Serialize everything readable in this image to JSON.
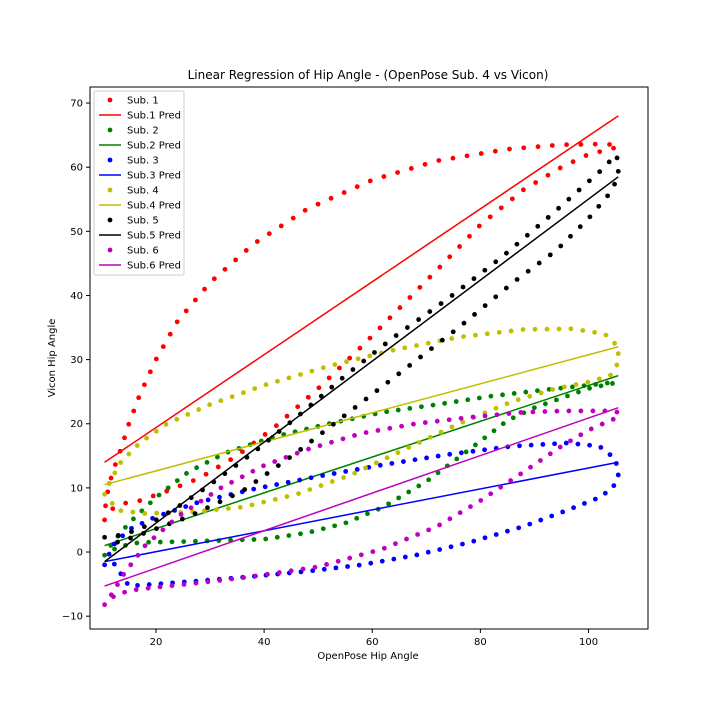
{
  "chart_data": {
    "type": "scatter",
    "title": "Linear Regression of Hip Angle - (OpenPose Sub. 4 vs Vicon)",
    "xlabel": "OpenPose Hip Angle",
    "ylabel": "Vicon Hip Angle",
    "xlim": [
      7.8,
      111.0
    ],
    "ylim": [
      -12.0,
      72.5
    ],
    "xticks": [
      20,
      40,
      60,
      80,
      100
    ],
    "yticks": [
      -10,
      0,
      10,
      20,
      30,
      40,
      50,
      60,
      70
    ],
    "grid": false,
    "legend_position": "top-left",
    "legend": [
      "Sub. 1",
      "Sub.1 Pred",
      "Sub. 2",
      "Sub.2 Pred",
      "Sub. 3",
      "Sub.3 Pred",
      "Sub. 4",
      "Sub.4 Pred",
      "Sub. 5",
      "Sub.5 Pred",
      "Sub. 6",
      "Sub.6 Pred"
    ],
    "series": [
      {
        "name": "Sub. 1",
        "color": "#ff0000",
        "n_points": 95,
        "loop": [
          {
            "x": 10.5,
            "y": 5.0
          },
          {
            "x": 10.7,
            "y": 7.5
          },
          {
            "x": 11.2,
            "y": 10.0
          },
          {
            "x": 12.0,
            "y": 12.5
          },
          {
            "x": 13.5,
            "y": 16.0
          },
          {
            "x": 15.0,
            "y": 20.0
          },
          {
            "x": 17.0,
            "y": 24.5
          },
          {
            "x": 20.0,
            "y": 30.0
          },
          {
            "x": 24.0,
            "y": 36.0
          },
          {
            "x": 30.0,
            "y": 42.0
          },
          {
            "x": 38.0,
            "y": 48.0
          },
          {
            "x": 48.0,
            "y": 53.5
          },
          {
            "x": 60.0,
            "y": 58.0
          },
          {
            "x": 72.0,
            "y": 61.0
          },
          {
            "x": 85.0,
            "y": 62.8
          },
          {
            "x": 95.0,
            "y": 63.5
          },
          {
            "x": 102.0,
            "y": 63.6
          },
          {
            "x": 105.0,
            "y": 63.5
          },
          {
            "x": 105.5,
            "y": 63.2
          },
          {
            "x": 104.0,
            "y": 62.8
          },
          {
            "x": 100.0,
            "y": 62.0
          },
          {
            "x": 95.0,
            "y": 60.0
          },
          {
            "x": 88.0,
            "y": 56.5
          },
          {
            "x": 80.0,
            "y": 51.0
          },
          {
            "x": 72.0,
            "y": 44.0
          },
          {
            "x": 65.0,
            "y": 38.0
          },
          {
            "x": 58.0,
            "y": 32.0
          },
          {
            "x": 50.0,
            "y": 25.5
          },
          {
            "x": 42.0,
            "y": 19.5
          },
          {
            "x": 35.0,
            "y": 15.0
          },
          {
            "x": 28.0,
            "y": 11.5
          },
          {
            "x": 22.0,
            "y": 9.5
          },
          {
            "x": 17.0,
            "y": 8.0
          },
          {
            "x": 13.5,
            "y": 7.5
          },
          {
            "x": 11.5,
            "y": 6.5
          },
          {
            "x": 10.5,
            "y": 5.0
          }
        ],
        "regression": {
          "x": [
            10.5,
            105.5
          ],
          "y": [
            14.0,
            68.0
          ]
        }
      },
      {
        "name": "Sub. 2",
        "color": "#008000",
        "n_points": 95,
        "loop": [
          {
            "x": 10.5,
            "y": -0.5
          },
          {
            "x": 12.0,
            "y": 1.5
          },
          {
            "x": 15.0,
            "y": 4.5
          },
          {
            "x": 20.0,
            "y": 8.5
          },
          {
            "x": 26.0,
            "y": 12.5
          },
          {
            "x": 33.0,
            "y": 15.5
          },
          {
            "x": 42.0,
            "y": 18.0
          },
          {
            "x": 52.0,
            "y": 20.0
          },
          {
            "x": 62.0,
            "y": 21.8
          },
          {
            "x": 72.0,
            "y": 23.0
          },
          {
            "x": 82.0,
            "y": 24.3
          },
          {
            "x": 92.0,
            "y": 25.3
          },
          {
            "x": 100.0,
            "y": 26.0
          },
          {
            "x": 105.0,
            "y": 26.5
          },
          {
            "x": 104.5,
            "y": 26.3
          },
          {
            "x": 100.0,
            "y": 25.5
          },
          {
            "x": 95.0,
            "y": 24.0
          },
          {
            "x": 90.0,
            "y": 22.5
          },
          {
            "x": 85.0,
            "y": 20.5
          },
          {
            "x": 78.0,
            "y": 16.0
          },
          {
            "x": 70.0,
            "y": 11.0
          },
          {
            "x": 62.0,
            "y": 7.0
          },
          {
            "x": 55.0,
            "y": 4.5
          },
          {
            "x": 48.0,
            "y": 3.0
          },
          {
            "x": 40.0,
            "y": 2.0
          },
          {
            "x": 32.0,
            "y": 1.8
          },
          {
            "x": 24.0,
            "y": 1.6
          },
          {
            "x": 17.0,
            "y": 1.5
          },
          {
            "x": 13.0,
            "y": 0.8
          },
          {
            "x": 10.5,
            "y": -0.5
          }
        ],
        "regression": {
          "x": [
            10.5,
            105.5
          ],
          "y": [
            1.0,
            27.5
          ]
        }
      },
      {
        "name": "Sub. 3",
        "color": "#0000ff",
        "n_points": 95,
        "loop": [
          {
            "x": 10.5,
            "y": -2.0
          },
          {
            "x": 12.0,
            "y": 1.0
          },
          {
            "x": 15.0,
            "y": 3.5
          },
          {
            "x": 20.0,
            "y": 5.5
          },
          {
            "x": 28.0,
            "y": 7.8
          },
          {
            "x": 38.0,
            "y": 9.8
          },
          {
            "x": 50.0,
            "y": 11.8
          },
          {
            "x": 62.0,
            "y": 13.6
          },
          {
            "x": 74.0,
            "y": 15.2
          },
          {
            "x": 86.0,
            "y": 16.5
          },
          {
            "x": 96.0,
            "y": 17.0
          },
          {
            "x": 102.0,
            "y": 16.5
          },
          {
            "x": 105.0,
            "y": 14.5
          },
          {
            "x": 105.5,
            "y": 12.0
          },
          {
            "x": 104.5,
            "y": 10.0
          },
          {
            "x": 102.0,
            "y": 8.5
          },
          {
            "x": 96.0,
            "y": 6.5
          },
          {
            "x": 88.0,
            "y": 4.0
          },
          {
            "x": 78.0,
            "y": 1.5
          },
          {
            "x": 68.0,
            "y": -0.5
          },
          {
            "x": 58.0,
            "y": -2.0
          },
          {
            "x": 48.0,
            "y": -3.0
          },
          {
            "x": 38.0,
            "y": -3.8
          },
          {
            "x": 28.0,
            "y": -4.5
          },
          {
            "x": 20.0,
            "y": -5.0
          },
          {
            "x": 15.0,
            "y": -5.3
          },
          {
            "x": 12.0,
            "y": -1.5
          },
          {
            "x": 10.5,
            "y": -2.0
          }
        ],
        "regression": {
          "x": [
            10.5,
            105.5
          ],
          "y": [
            -1.5,
            14.0
          ]
        }
      },
      {
        "name": "Sub. 4",
        "color": "#bfbf00",
        "n_points": 95,
        "loop": [
          {
            "x": 10.5,
            "y": 9.0
          },
          {
            "x": 11.5,
            "y": 11.0
          },
          {
            "x": 13.5,
            "y": 14.0
          },
          {
            "x": 17.0,
            "y": 17.0
          },
          {
            "x": 22.0,
            "y": 20.0
          },
          {
            "x": 30.0,
            "y": 23.0
          },
          {
            "x": 40.0,
            "y": 26.0
          },
          {
            "x": 52.0,
            "y": 29.0
          },
          {
            "x": 64.0,
            "y": 31.5
          },
          {
            "x": 76.0,
            "y": 33.5
          },
          {
            "x": 88.0,
            "y": 34.7
          },
          {
            "x": 97.0,
            "y": 34.8
          },
          {
            "x": 103.0,
            "y": 34.0
          },
          {
            "x": 105.5,
            "y": 32.0
          },
          {
            "x": 105.5,
            "y": 29.5
          },
          {
            "x": 104.0,
            "y": 27.5
          },
          {
            "x": 100.0,
            "y": 26.5
          },
          {
            "x": 94.0,
            "y": 25.5
          },
          {
            "x": 86.0,
            "y": 23.5
          },
          {
            "x": 76.0,
            "y": 20.0
          },
          {
            "x": 66.0,
            "y": 16.0
          },
          {
            "x": 56.0,
            "y": 12.0
          },
          {
            "x": 46.0,
            "y": 9.0
          },
          {
            "x": 36.0,
            "y": 7.0
          },
          {
            "x": 26.0,
            "y": 6.2
          },
          {
            "x": 18.0,
            "y": 6.0
          },
          {
            "x": 13.0,
            "y": 6.5
          },
          {
            "x": 10.5,
            "y": 9.0
          }
        ],
        "regression": {
          "x": [
            10.5,
            105.5
          ],
          "y": [
            10.5,
            32.0
          ]
        }
      },
      {
        "name": "Sub. 5",
        "color": "#000000",
        "n_points": 95,
        "loop": [
          {
            "x": 10.5,
            "y": 2.3
          },
          {
            "x": 14.0,
            "y": 2.7
          },
          {
            "x": 18.0,
            "y": 4.0
          },
          {
            "x": 24.0,
            "y": 7.0
          },
          {
            "x": 30.0,
            "y": 10.5
          },
          {
            "x": 38.0,
            "y": 15.5
          },
          {
            "x": 46.0,
            "y": 21.0
          },
          {
            "x": 55.0,
            "y": 27.5
          },
          {
            "x": 64.0,
            "y": 33.5
          },
          {
            "x": 74.0,
            "y": 39.5
          },
          {
            "x": 84.0,
            "y": 46.0
          },
          {
            "x": 93.0,
            "y": 52.5
          },
          {
            "x": 99.0,
            "y": 57.0
          },
          {
            "x": 103.0,
            "y": 60.0
          },
          {
            "x": 105.0,
            "y": 62.0
          },
          {
            "x": 105.5,
            "y": 61.0
          },
          {
            "x": 105.5,
            "y": 58.5
          },
          {
            "x": 104.0,
            "y": 56.0
          },
          {
            "x": 100.0,
            "y": 52.0
          },
          {
            "x": 94.0,
            "y": 47.0
          },
          {
            "x": 86.0,
            "y": 42.0
          },
          {
            "x": 76.0,
            "y": 35.0
          },
          {
            "x": 66.0,
            "y": 28.5
          },
          {
            "x": 56.0,
            "y": 22.0
          },
          {
            "x": 46.0,
            "y": 15.5
          },
          {
            "x": 36.0,
            "y": 9.5
          },
          {
            "x": 26.0,
            "y": 5.5
          },
          {
            "x": 18.0,
            "y": 3.0
          },
          {
            "x": 13.0,
            "y": 1.5
          },
          {
            "x": 10.5,
            "y": 2.3
          }
        ],
        "regression": {
          "x": [
            10.5,
            105.5
          ],
          "y": [
            -1.5,
            58.5
          ]
        }
      },
      {
        "name": "Sub. 6",
        "color": "#bf00bf",
        "n_points": 95,
        "loop": [
          {
            "x": 10.5,
            "y": -8.2
          },
          {
            "x": 12.0,
            "y": -7.0
          },
          {
            "x": 15.0,
            "y": -6.0
          },
          {
            "x": 20.0,
            "y": -5.5
          },
          {
            "x": 28.0,
            "y": -4.8
          },
          {
            "x": 38.0,
            "y": -3.8
          },
          {
            "x": 50.0,
            "y": -2.3
          },
          {
            "x": 62.0,
            "y": 0.5
          },
          {
            "x": 72.0,
            "y": 4.0
          },
          {
            "x": 80.0,
            "y": 8.0
          },
          {
            "x": 88.0,
            "y": 12.5
          },
          {
            "x": 95.0,
            "y": 16.5
          },
          {
            "x": 100.0,
            "y": 19.0
          },
          {
            "x": 104.0,
            "y": 20.5
          },
          {
            "x": 105.5,
            "y": 21.0
          },
          {
            "x": 105.5,
            "y": 21.8
          },
          {
            "x": 103.0,
            "y": 22.0
          },
          {
            "x": 96.0,
            "y": 22.0
          },
          {
            "x": 88.0,
            "y": 21.8
          },
          {
            "x": 78.0,
            "y": 21.0
          },
          {
            "x": 68.0,
            "y": 20.0
          },
          {
            "x": 58.0,
            "y": 18.5
          },
          {
            "x": 48.0,
            "y": 16.0
          },
          {
            "x": 40.0,
            "y": 13.5
          },
          {
            "x": 32.0,
            "y": 10.0
          },
          {
            "x": 24.0,
            "y": 5.5
          },
          {
            "x": 18.0,
            "y": 1.0
          },
          {
            "x": 14.0,
            "y": -3.5
          },
          {
            "x": 11.5,
            "y": -7.0
          },
          {
            "x": 10.5,
            "y": -8.2
          }
        ],
        "regression": {
          "x": [
            10.5,
            105.5
          ],
          "y": [
            -5.3,
            22.5
          ]
        }
      }
    ]
  }
}
